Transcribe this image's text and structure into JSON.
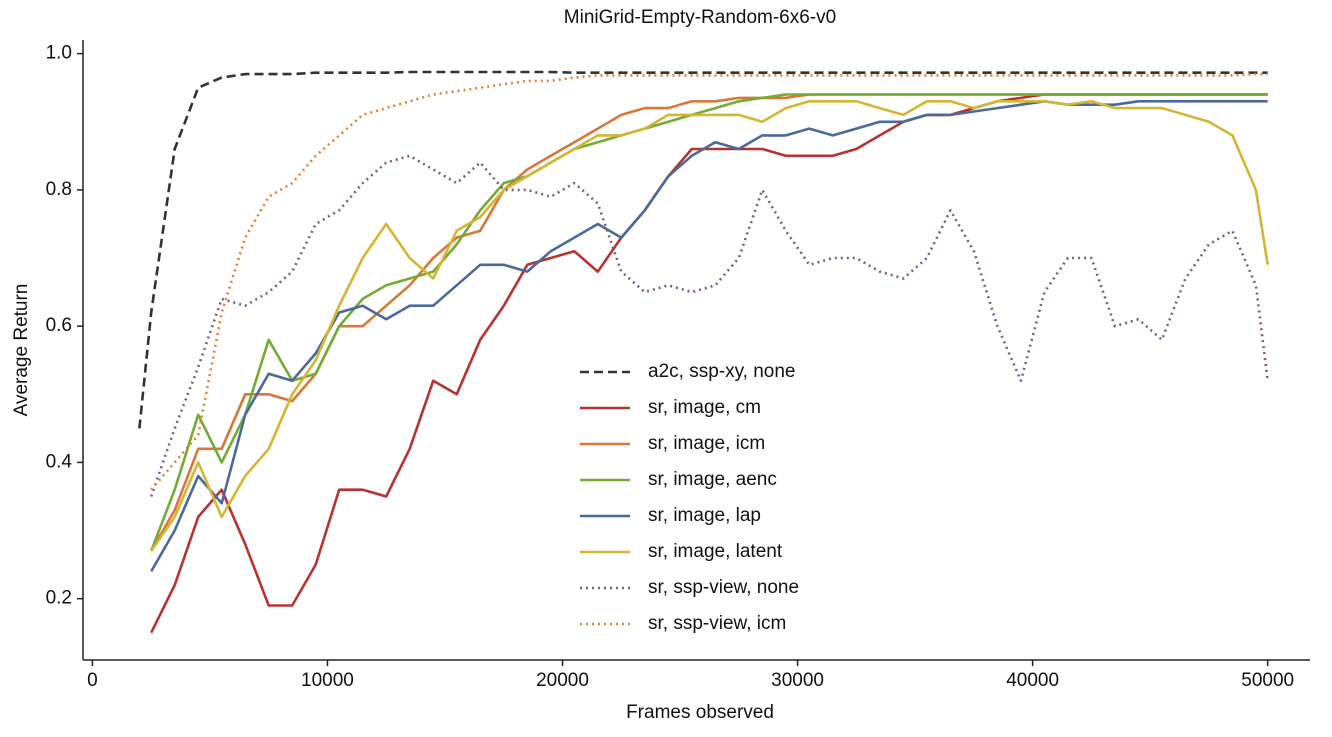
{
  "chart_data": {
    "type": "line",
    "title": "MiniGrid-Empty-Random-6x6-v0",
    "xlabel": "Frames observed",
    "ylabel": "Average Return",
    "x": [
      2000,
      2500,
      3500,
      4500,
      5500,
      6500,
      7500,
      8500,
      9500,
      10500,
      11500,
      12500,
      13500,
      14500,
      15500,
      16500,
      17500,
      18500,
      19500,
      20500,
      21500,
      22500,
      23500,
      24500,
      25500,
      26500,
      27500,
      28500,
      29500,
      30500,
      31500,
      32500,
      33500,
      34500,
      35500,
      36500,
      37500,
      38500,
      39500,
      40500,
      41500,
      42500,
      43500,
      44500,
      45500,
      46500,
      47500,
      48500,
      49500,
      50000
    ],
    "xlim": [
      -400,
      51800
    ],
    "ylim": [
      0.11,
      1.02
    ],
    "xticks": [
      0,
      10000,
      20000,
      30000,
      40000,
      50000
    ],
    "yticks": [
      0.2,
      0.4,
      0.6,
      0.8,
      {
        "value": 1,
        "label": "1.0"
      }
    ],
    "legend": "center",
    "series": [
      {
        "name": "a2c, ssp-xy, none",
        "color": "#333333",
        "linestyle": "dashed",
        "values": [
          0.45,
          0.62,
          0.86,
          0.95,
          0.965,
          0.97,
          0.97,
          0.97,
          0.972,
          0.972,
          0.972,
          0.972,
          0.973,
          0.973,
          0.973,
          0.973,
          0.973,
          0.973,
          0.973,
          0.972,
          0.972,
          0.972,
          0.972,
          0.972,
          0.972,
          0.972,
          0.972,
          0.972,
          0.972,
          0.972,
          0.972,
          0.972,
          0.972,
          0.972,
          0.972,
          0.972,
          0.972,
          0.972,
          0.972,
          0.972,
          0.972,
          0.972,
          0.972,
          0.972,
          0.972,
          0.972,
          0.972,
          0.972,
          0.972,
          0.972
        ]
      },
      {
        "name": "sr, image, cm",
        "color": "#b83232",
        "linestyle": "solid",
        "values": [
          null,
          0.15,
          0.22,
          0.32,
          0.36,
          0.28,
          0.19,
          0.19,
          0.25,
          0.36,
          0.36,
          0.35,
          0.42,
          0.52,
          0.5,
          0.58,
          0.63,
          0.69,
          0.7,
          0.71,
          0.68,
          0.73,
          0.77,
          0.82,
          0.86,
          0.86,
          0.86,
          0.86,
          0.85,
          0.85,
          0.85,
          0.86,
          0.88,
          0.9,
          0.91,
          0.91,
          0.92,
          0.93,
          0.935,
          0.94,
          0.94,
          0.94,
          0.94,
          0.94,
          0.94,
          0.94,
          0.94,
          0.94,
          0.94,
          0.94
        ]
      },
      {
        "name": "sr, image, icm",
        "color": "#d9773a",
        "linestyle": "solid",
        "values": [
          null,
          0.27,
          0.33,
          0.42,
          0.42,
          0.5,
          0.5,
          0.49,
          0.53,
          0.6,
          0.6,
          0.63,
          0.66,
          0.7,
          0.73,
          0.74,
          0.8,
          0.83,
          0.85,
          0.87,
          0.89,
          0.91,
          0.92,
          0.92,
          0.93,
          0.93,
          0.935,
          0.935,
          0.935,
          0.94,
          0.94,
          0.94,
          0.94,
          0.94,
          0.94,
          0.94,
          0.94,
          0.94,
          0.94,
          0.94,
          0.94,
          0.94,
          0.94,
          0.94,
          0.94,
          0.94,
          0.94,
          0.94,
          0.94,
          0.94
        ]
      },
      {
        "name": "sr, image, aenc",
        "color": "#74ab35",
        "linestyle": "solid",
        "values": [
          null,
          0.27,
          0.36,
          0.47,
          0.4,
          0.47,
          0.58,
          0.52,
          0.53,
          0.6,
          0.64,
          0.66,
          0.67,
          0.68,
          0.72,
          0.77,
          0.81,
          0.82,
          0.84,
          0.86,
          0.87,
          0.88,
          0.89,
          0.9,
          0.91,
          0.92,
          0.93,
          0.935,
          0.94,
          0.94,
          0.94,
          0.94,
          0.94,
          0.94,
          0.94,
          0.94,
          0.94,
          0.94,
          0.94,
          0.94,
          0.94,
          0.94,
          0.94,
          0.94,
          0.94,
          0.94,
          0.94,
          0.94,
          0.94,
          0.94
        ]
      },
      {
        "name": "sr, image, lap",
        "color": "#4a6a9c",
        "linestyle": "solid",
        "values": [
          null,
          0.24,
          0.3,
          0.38,
          0.34,
          0.47,
          0.53,
          0.52,
          0.56,
          0.62,
          0.63,
          0.61,
          0.63,
          0.63,
          0.66,
          0.69,
          0.69,
          0.68,
          0.71,
          0.73,
          0.75,
          0.73,
          0.77,
          0.82,
          0.85,
          0.87,
          0.86,
          0.88,
          0.88,
          0.89,
          0.88,
          0.89,
          0.9,
          0.9,
          0.91,
          0.91,
          0.915,
          0.92,
          0.925,
          0.93,
          0.925,
          0.925,
          0.925,
          0.93,
          0.93,
          0.93,
          0.93,
          0.93,
          0.93,
          0.93
        ]
      },
      {
        "name": "sr, image, latent",
        "color": "#d4b634",
        "linestyle": "solid",
        "values": [
          null,
          0.27,
          0.32,
          0.4,
          0.32,
          0.38,
          0.42,
          0.5,
          0.55,
          0.63,
          0.7,
          0.75,
          0.7,
          0.67,
          0.74,
          0.76,
          0.8,
          0.82,
          0.84,
          0.86,
          0.88,
          0.88,
          0.89,
          0.91,
          0.91,
          0.91,
          0.91,
          0.9,
          0.92,
          0.93,
          0.93,
          0.93,
          0.92,
          0.91,
          0.93,
          0.93,
          0.92,
          0.93,
          0.93,
          0.93,
          0.925,
          0.93,
          0.92,
          0.92,
          0.92,
          0.91,
          0.9,
          0.88,
          0.8,
          0.69
        ]
      },
      {
        "name": "sr, ssp-view, none",
        "color": "#7d5a8c",
        "linestyle": "dotted",
        "values": [
          null,
          0.35,
          0.45,
          0.54,
          0.64,
          0.63,
          0.65,
          0.68,
          0.75,
          0.77,
          0.81,
          0.84,
          0.85,
          0.83,
          0.81,
          0.84,
          0.8,
          0.8,
          0.79,
          0.81,
          0.78,
          0.68,
          0.65,
          0.66,
          0.65,
          0.66,
          0.7,
          0.8,
          0.74,
          0.69,
          0.7,
          0.7,
          0.68,
          0.67,
          0.7,
          0.77,
          0.71,
          0.6,
          0.52,
          0.65,
          0.7,
          0.7,
          0.6,
          0.61,
          0.58,
          0.67,
          0.72,
          0.74,
          0.66,
          0.52
        ]
      },
      {
        "name": "sr, ssp-view, icm",
        "color": "#e5802f",
        "linestyle": "dotted",
        "values": [
          null,
          0.36,
          0.4,
          0.44,
          0.62,
          0.73,
          0.79,
          0.81,
          0.85,
          0.88,
          0.91,
          0.92,
          0.93,
          0.94,
          0.945,
          0.95,
          0.955,
          0.96,
          0.96,
          0.965,
          0.968,
          0.968,
          0.968,
          0.968,
          0.968,
          0.968,
          0.968,
          0.968,
          0.968,
          0.968,
          0.968,
          0.968,
          0.968,
          0.968,
          0.968,
          0.968,
          0.968,
          0.968,
          0.968,
          0.968,
          0.968,
          0.968,
          0.968,
          0.968,
          0.968,
          0.968,
          0.968,
          0.968,
          0.97,
          0.97
        ]
      }
    ]
  }
}
